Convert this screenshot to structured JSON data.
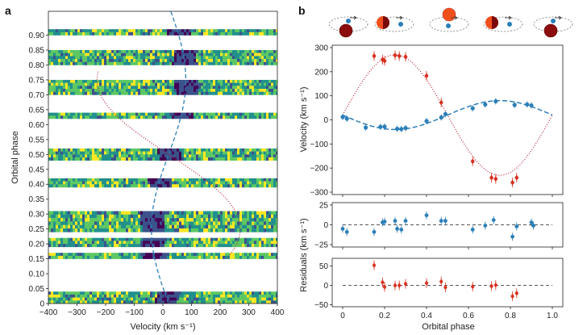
{
  "panel_a_label": "a",
  "panel_b_label": "b",
  "colors": {
    "blue": "#2c7fb8",
    "red": "#d7301f",
    "red_dots": "#b2182b",
    "viridis": [
      "#440154",
      "#3b528b",
      "#21908d",
      "#5dc863",
      "#fde725"
    ]
  },
  "icons": [
    "orbit-diagram-icon-phase-0",
    "orbit-diagram-icon-phase-0.25",
    "orbit-diagram-icon-phase-0.5",
    "orbit-diagram-icon-phase-0.75",
    "orbit-diagram-icon-phase-1"
  ],
  "chart_data": [
    {
      "id": "panel-a",
      "type": "heatmap",
      "title": "",
      "xlabel": "Velocity (km s⁻¹)",
      "ylabel": "Orbital phase",
      "xlim": [
        -400,
        400
      ],
      "ylim": [
        0,
        0.98
      ],
      "xticks": [
        -400,
        -300,
        -200,
        -100,
        0,
        100,
        200,
        300,
        400
      ],
      "yticks": [
        0,
        0.05,
        0.1,
        0.15,
        0.2,
        0.25,
        0.3,
        0.35,
        0.4,
        0.45,
        0.5,
        0.55,
        0.6,
        0.65,
        0.7,
        0.75,
        0.8,
        0.85,
        0.9
      ],
      "bands": [
        {
          "start": 0.0,
          "end": 0.04
        },
        {
          "start": 0.15,
          "end": 0.17
        },
        {
          "start": 0.19,
          "end": 0.22
        },
        {
          "start": 0.24,
          "end": 0.31
        },
        {
          "start": 0.39,
          "end": 0.42
        },
        {
          "start": 0.48,
          "end": 0.52
        },
        {
          "start": 0.62,
          "end": 0.64
        },
        {
          "start": 0.7,
          "end": 0.75
        },
        {
          "start": 0.8,
          "end": 0.85
        },
        {
          "start": 0.9,
          "end": 0.92
        }
      ],
      "curves": [
        {
          "name": "primary",
          "style": "dashed",
          "gamma": 20,
          "K": 60,
          "phase0": 0.5
        },
        {
          "name": "secondary",
          "style": "dotted",
          "gamma": 20,
          "K": 250,
          "phase0": 0.0
        }
      ]
    },
    {
      "id": "panel-b-velocity",
      "type": "scatter",
      "xlabel": "",
      "ylabel": "Velocity (km s⁻¹)",
      "xlim": [
        -0.05,
        1.05
      ],
      "ylim": [
        -310,
        310
      ],
      "yticks": [
        -300,
        -200,
        -100,
        0,
        100,
        200,
        300
      ],
      "xticks": [
        0,
        0.2,
        0.4,
        0.6,
        0.8,
        1.0
      ],
      "series": [
        {
          "name": "primary",
          "style": "blue",
          "points": [
            [
              0.0,
              12
            ],
            [
              0.02,
              5
            ],
            [
              0.11,
              -32
            ],
            [
              0.18,
              -29
            ],
            [
              0.2,
              -28
            ],
            [
              0.26,
              -37
            ],
            [
              0.28,
              -38
            ],
            [
              0.3,
              -34
            ],
            [
              0.4,
              -5
            ],
            [
              0.47,
              10
            ],
            [
              0.49,
              24
            ],
            [
              0.62,
              48
            ],
            [
              0.68,
              64
            ],
            [
              0.73,
              77
            ],
            [
              0.82,
              62
            ],
            [
              0.88,
              64
            ],
            [
              0.9,
              60
            ]
          ]
        },
        {
          "name": "secondary",
          "style": "red",
          "points": [
            [
              0.15,
              265
            ],
            [
              0.19,
              250
            ],
            [
              0.2,
              245
            ],
            [
              0.25,
              268
            ],
            [
              0.27,
              265
            ],
            [
              0.3,
              262
            ],
            [
              0.4,
              183
            ],
            [
              0.47,
              72
            ],
            [
              0.62,
              -172
            ],
            [
              0.71,
              -240
            ],
            [
              0.73,
              -245
            ],
            [
              0.81,
              -260
            ],
            [
              0.83,
              -240
            ]
          ]
        }
      ]
    },
    {
      "id": "panel-b-res-primary",
      "type": "scatter",
      "ylabel": "Residuals (km s⁻¹)",
      "ylim": [
        -28,
        28
      ],
      "yticks": [
        -25,
        0,
        25
      ],
      "points": [
        [
          0.0,
          -5
        ],
        [
          0.02,
          -9
        ],
        [
          0.15,
          -9
        ],
        [
          0.19,
          3
        ],
        [
          0.2,
          4
        ],
        [
          0.25,
          5
        ],
        [
          0.26,
          -5
        ],
        [
          0.28,
          -6
        ],
        [
          0.3,
          5
        ],
        [
          0.4,
          12
        ],
        [
          0.47,
          5
        ],
        [
          0.49,
          5
        ],
        [
          0.62,
          -6
        ],
        [
          0.68,
          -1
        ],
        [
          0.72,
          6
        ],
        [
          0.81,
          -15
        ],
        [
          0.83,
          -2
        ],
        [
          0.9,
          3
        ],
        [
          0.91,
          -1
        ]
      ]
    },
    {
      "id": "panel-b-res-secondary",
      "type": "scatter",
      "xlabel": "Orbital phase",
      "ylim": [
        -55,
        70
      ],
      "yticks": [
        -50,
        0,
        50
      ],
      "xticks": [
        0,
        0.2,
        0.4,
        0.6,
        0.8,
        1.0
      ],
      "xticklabels": [
        "0",
        "0.2",
        "0.4",
        "0.6",
        "0.8",
        "1.0"
      ],
      "points": [
        [
          0.15,
          52
        ],
        [
          0.19,
          8
        ],
        [
          0.2,
          -4
        ],
        [
          0.25,
          0
        ],
        [
          0.27,
          0
        ],
        [
          0.3,
          4
        ],
        [
          0.4,
          6
        ],
        [
          0.47,
          10
        ],
        [
          0.49,
          -5
        ],
        [
          0.62,
          -3
        ],
        [
          0.71,
          -2
        ],
        [
          0.73,
          1
        ],
        [
          0.81,
          -28
        ],
        [
          0.83,
          -20
        ]
      ]
    }
  ]
}
